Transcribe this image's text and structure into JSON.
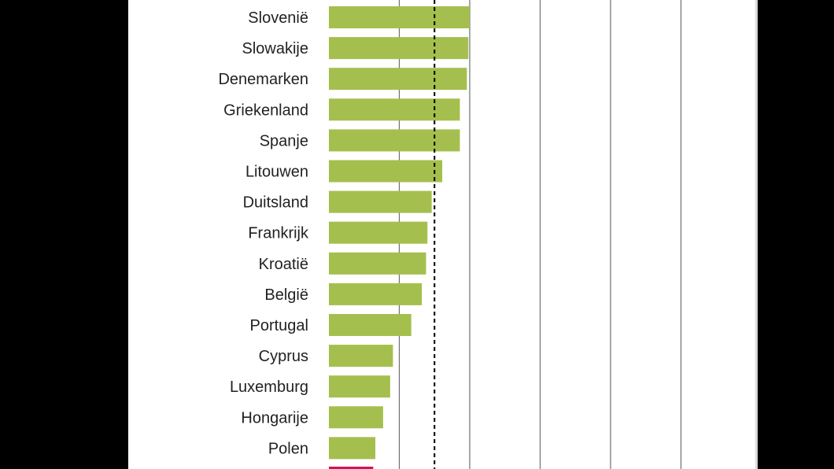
{
  "chart_data": {
    "type": "bar",
    "orientation": "horizontal",
    "title": "",
    "xlabel": "",
    "ylabel": "",
    "categories": [
      "Slovenië",
      "Slowakije",
      "Denemarken",
      "Griekenland",
      "Spanje",
      "Litouwen",
      "Duitsland",
      "Frankrijk",
      "Kroatië",
      "België",
      "Portugal",
      "Cyprus",
      "Luxemburg",
      "Hongarije",
      "Polen"
    ],
    "values": [
      2.0,
      1.98,
      1.96,
      1.86,
      1.86,
      1.61,
      1.46,
      1.4,
      1.38,
      1.32,
      1.17,
      0.91,
      0.87,
      0.77,
      0.66
    ],
    "xlim": [
      0,
      5
    ],
    "gridlines": [
      1,
      2,
      3,
      4,
      5
    ],
    "reference_line": 1.5,
    "grid": true,
    "legend": "none",
    "colors": {
      "bar": "#a5bf4e",
      "grid": "#6d6e71",
      "reference": "#000000",
      "highlight": "#d1145a",
      "label": "#231f20"
    }
  }
}
